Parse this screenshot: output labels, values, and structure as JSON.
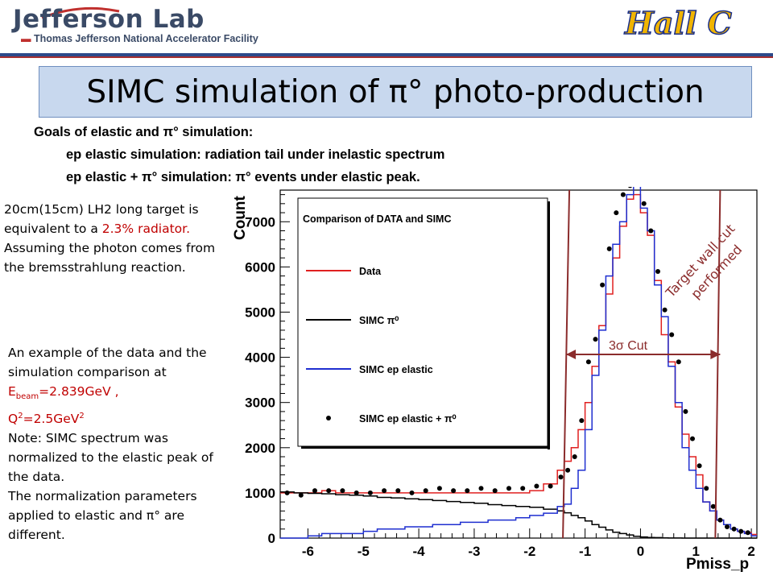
{
  "header": {
    "lab_name": "Jefferson Lab",
    "lab_subtitle": "Thomas Jefferson National Accelerator Facility",
    "hall_logo": "Hall C"
  },
  "title": "SIMC simulation of π° photo-production",
  "goals": {
    "heading": "Goals of elastic and π° simulation:",
    "items": [
      "ep elastic simulation: radiation tail under inelastic spectrum",
      "ep elastic  +  π° simulation:  π° events under elastic peak."
    ]
  },
  "notes": {
    "target_1": "20cm(15cm) LH2  long target is equivalent to a ",
    "target_pct": "2.3% radiator.",
    "photon": " Assuming the photon comes from the bremsstrahlung reaction.",
    "example_1": "An example of the data and the simulation comparison at ",
    "ebeam_label": "E",
    "ebeam_sub": "beam",
    "ebeam_value": "=2.839GeV ,",
    "q2_label": "Q",
    "q2_sup": "2",
    "q2_value": "=2.5GeV",
    "q2_unit_sup": "2",
    "normalization": "Note: SIMC  spectrum was normalized  to the elastic peak of the data.",
    "parameters": "The normalization parameters applied to elastic and π° are different."
  },
  "chart_data": {
    "type": "line",
    "title": "Comparison of DATA and SIMC",
    "xlabel": "Pmiss_p",
    "ylabel": "Count",
    "xlim": [
      -6.5,
      2.1
    ],
    "ylim": [
      0,
      7700
    ],
    "x_ticks": [
      "-6",
      "-5",
      "-4",
      "-3",
      "-2",
      "-1",
      "0",
      "1",
      "2"
    ],
    "y_ticks": [
      "0",
      "1000",
      "2000",
      "3000",
      "4000",
      "5000",
      "6000",
      "7000"
    ],
    "legend": [
      "Data",
      "SIMC π⁰",
      "SIMC ep elastic",
      "SIMC ep elastic + π⁰"
    ],
    "colors": {
      "data": "#e02020",
      "simc_pi0": "#000000",
      "simc_elastic": "#1f2fd0",
      "sum": "#000000",
      "cut": "#8b2c2c"
    },
    "bin_edges": [
      -6.5,
      -6.25,
      -6.0,
      -5.75,
      -5.5,
      -5.25,
      -5.0,
      -4.75,
      -4.5,
      -4.25,
      -4.0,
      -3.75,
      -3.5,
      -3.25,
      -3.0,
      -2.75,
      -2.5,
      -2.25,
      -2.0,
      -1.75,
      -1.5,
      -1.375,
      -1.25,
      -1.125,
      -1.0,
      -0.875,
      -0.75,
      -0.625,
      -0.5,
      -0.375,
      -0.25,
      -0.125,
      0.0,
      0.125,
      0.25,
      0.375,
      0.5,
      0.625,
      0.75,
      0.875,
      1.0,
      1.125,
      1.25,
      1.375,
      1.5,
      1.625,
      1.75,
      1.875,
      2.0,
      2.1
    ],
    "series": [
      {
        "name": "Data",
        "values": [
          1000,
          1000,
          1000,
          1050,
          1000,
          1000,
          1000,
          1000,
          1000,
          1000,
          1000,
          1000,
          1000,
          1000,
          1000,
          1000,
          1000,
          1000,
          1050,
          1200,
          1500,
          1700,
          2000,
          2400,
          3000,
          3800,
          4700,
          5400,
          6200,
          6900,
          7500,
          7600,
          7200,
          6700,
          5700,
          4500,
          3900,
          2900,
          2300,
          1800,
          1400,
          800,
          600,
          400,
          300,
          200,
          150,
          120,
          80
        ]
      },
      {
        "name": "SIMC π⁰",
        "values": [
          1020,
          1000,
          990,
          980,
          960,
          950,
          930,
          900,
          890,
          870,
          850,
          830,
          810,
          790,
          770,
          740,
          720,
          700,
          680,
          640,
          600,
          560,
          500,
          450,
          380,
          300,
          240,
          180,
          130,
          100,
          70,
          40,
          25,
          15,
          10,
          5,
          2,
          1,
          0,
          0,
          0,
          0,
          0,
          0,
          0,
          0,
          0,
          0,
          0
        ]
      },
      {
        "name": "SIMC ep elastic",
        "values": [
          0,
          0,
          50,
          100,
          100,
          100,
          150,
          200,
          200,
          250,
          250,
          300,
          300,
          350,
          350,
          400,
          400,
          450,
          500,
          550,
          700,
          750,
          1100,
          1500,
          2400,
          3600,
          4600,
          5800,
          6500,
          7000,
          7600,
          7800,
          7300,
          6800,
          5600,
          4900,
          3800,
          3000,
          2000,
          1500,
          1100,
          800,
          600,
          400,
          300,
          200,
          150,
          100,
          50
        ]
      },
      {
        "name": "SIMC ep elastic + π⁰",
        "points": [
          [
            -6.375,
            1000
          ],
          [
            -6.125,
            950
          ],
          [
            -5.875,
            1050
          ],
          [
            -5.625,
            1050
          ],
          [
            -5.375,
            1050
          ],
          [
            -5.125,
            1000
          ],
          [
            -4.875,
            1000
          ],
          [
            -4.625,
            1050
          ],
          [
            -4.375,
            1050
          ],
          [
            -4.125,
            1000
          ],
          [
            -3.875,
            1050
          ],
          [
            -3.625,
            1100
          ],
          [
            -3.375,
            1050
          ],
          [
            -3.125,
            1050
          ],
          [
            -2.875,
            1100
          ],
          [
            -2.625,
            1050
          ],
          [
            -2.375,
            1100
          ],
          [
            -2.125,
            1100
          ],
          [
            -1.875,
            1150
          ],
          [
            -1.625,
            1150
          ],
          [
            -1.4375,
            1350
          ],
          [
            -1.3125,
            1500
          ],
          [
            -1.1875,
            1800
          ],
          [
            -1.0625,
            2600
          ],
          [
            -0.9375,
            3900
          ],
          [
            -0.8125,
            4400
          ],
          [
            -0.6875,
            5600
          ],
          [
            -0.5625,
            6400
          ],
          [
            -0.4375,
            7200
          ],
          [
            -0.3125,
            7600
          ],
          [
            -0.1875,
            7800
          ],
          [
            -0.0625,
            7850
          ],
          [
            0.0625,
            7400
          ],
          [
            0.1875,
            6800
          ],
          [
            0.3125,
            5900
          ],
          [
            0.4375,
            5050
          ],
          [
            0.5625,
            4500
          ],
          [
            0.6875,
            3900
          ],
          [
            0.8125,
            2800
          ],
          [
            0.9375,
            2200
          ],
          [
            1.0625,
            1600
          ],
          [
            1.1875,
            1100
          ],
          [
            1.3125,
            700
          ],
          [
            1.4375,
            400
          ],
          [
            1.5625,
            250
          ],
          [
            1.6875,
            200
          ],
          [
            1.8125,
            150
          ],
          [
            1.9375,
            120
          ]
        ]
      }
    ],
    "cut_lines": [
      -1.4,
      1.35
    ],
    "cut_label": "3σ  Cut",
    "wall_cut_label_1": "Target wall cut",
    "wall_cut_label_2": "performed"
  }
}
